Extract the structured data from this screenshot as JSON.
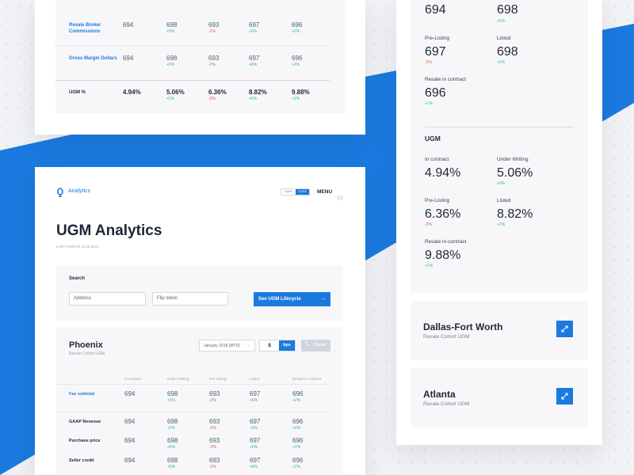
{
  "colors": {
    "accent": "#1b7ae0",
    "positive": "#2fb98d",
    "negative": "#e0574f",
    "background": "#f1f2f5"
  },
  "top_table": {
    "rows": [
      {
        "label": "Resale Broker Commissions",
        "values": [
          "694",
          "698",
          "693",
          "697",
          "696"
        ],
        "changes": [
          "",
          "+5%",
          "-2%",
          "+6%",
          "+2%"
        ]
      },
      {
        "label": "Gross Margin Dollars",
        "values": [
          "694",
          "698",
          "693",
          "697",
          "696"
        ],
        "changes": [
          "",
          "+5%",
          "-2%",
          "+6%",
          "+2%"
        ]
      },
      {
        "label": "UGM %",
        "values": [
          "4.94%",
          "5.06%",
          "6.36%",
          "8.82%",
          "9.88%"
        ],
        "changes": [
          "",
          "+5%",
          "-2%",
          "+6%",
          "+2%"
        ]
      }
    ]
  },
  "app": {
    "logo_text": "Analytics",
    "theme_dark": "DARK",
    "theme_light": "LIGHT",
    "menu_label": "MENU",
    "title": "UGM Analytics",
    "last_update": "LAST UPDATE 11.20.2017"
  },
  "search": {
    "heading": "Search",
    "address_placeholder": "Address",
    "flip_placeholder": "Flip token",
    "button_label": "See UGM Lifecycle"
  },
  "phoenix": {
    "city": "Phoenix",
    "subtitle": "Resale Cohort UGM",
    "period": "January 2018 (MTD)",
    "unit_dollar": "$",
    "unit_bps": "bps",
    "close_label": "Close",
    "columns": [
      "In contract",
      "Under Writing",
      "Pre-Listing",
      "Listed",
      "Resale in contract"
    ],
    "rows": [
      {
        "label": "Fee subtotal",
        "link": true,
        "values": [
          "694",
          "698",
          "693",
          "697",
          "696"
        ],
        "changes": [
          "",
          "+5%",
          "-2%",
          "+6%",
          "+2%"
        ]
      },
      {
        "label": "GAAP Revenue",
        "link": false,
        "values": [
          "694",
          "698",
          "693",
          "697",
          "696"
        ],
        "changes": [
          "",
          "+5%",
          "-2%",
          "+6%",
          "+2%"
        ]
      },
      {
        "label": "Purchase price",
        "link": false,
        "values": [
          "694",
          "698",
          "693",
          "697",
          "696"
        ],
        "changes": [
          "",
          "+5%",
          "-2%",
          "+6%",
          "+2%"
        ]
      },
      {
        "label": "Seller credit",
        "link": false,
        "values": [
          "694",
          "698",
          "693",
          "697",
          "696"
        ],
        "changes": [
          "",
          "+5%",
          "-2%",
          "+6%",
          "+2%"
        ]
      }
    ]
  },
  "side_top": {
    "metrics": [
      {
        "label": "",
        "value": "694",
        "change": ""
      },
      {
        "label": "",
        "value": "698",
        "change": "+5%"
      },
      {
        "label": "Pre-Listing",
        "value": "697",
        "change": "-2%"
      },
      {
        "label": "Listed",
        "value": "698",
        "change": "+2%"
      },
      {
        "label": "Resale in contract",
        "value": "696",
        "change": "+1%"
      }
    ]
  },
  "side_ugm": {
    "heading": "UGM",
    "metrics": [
      {
        "label": "In contract",
        "value": "4.94%",
        "change": ""
      },
      {
        "label": "Under Writing",
        "value": "5.06%",
        "change": "+5%"
      },
      {
        "label": "Pre-Listing",
        "value": "6.36%",
        "change": "-2%"
      },
      {
        "label": "Listed",
        "value": "8.82%",
        "change": "+2%"
      },
      {
        "label": "Resale in-contract",
        "value": "9.88%",
        "change": "+1%"
      }
    ]
  },
  "cities": [
    {
      "name": "Dallas-Fort Worth",
      "subtitle": "Resale Cohort UGM",
      "icon": "expand-icon"
    },
    {
      "name": "Atlanta",
      "subtitle": "Resale Cohort UGM",
      "icon": "expand-icon"
    }
  ]
}
